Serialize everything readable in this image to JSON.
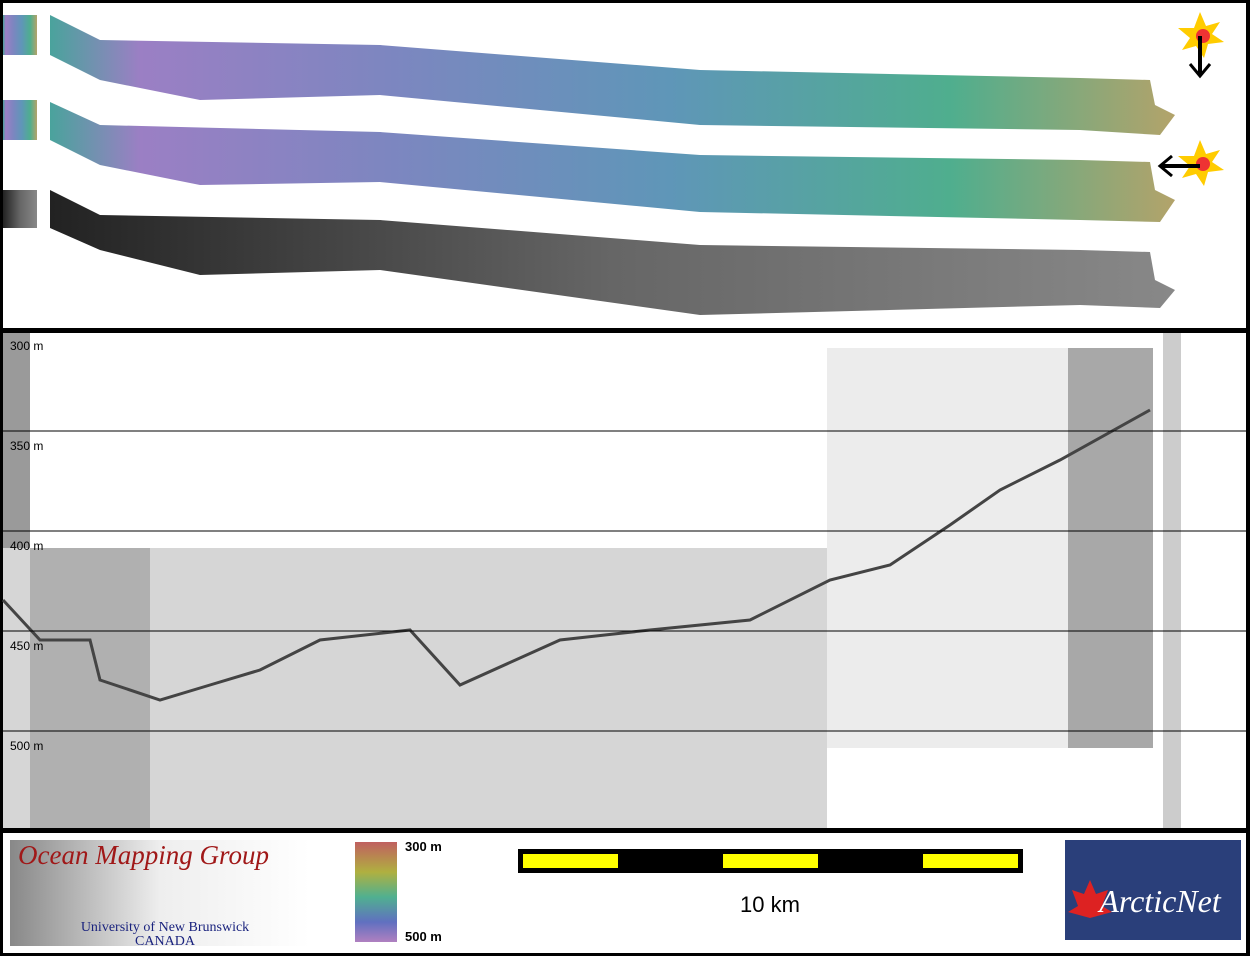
{
  "profile": {
    "ylim": [
      300,
      548
    ],
    "depth_ticks": [
      {
        "value": 300,
        "label": "300 m"
      },
      {
        "value": 350,
        "label": "350 m"
      },
      {
        "value": 400,
        "label": "400 m"
      },
      {
        "value": 450,
        "label": "450 m"
      },
      {
        "value": 500,
        "label": "500 m"
      }
    ]
  },
  "footer": {
    "logo_title": "Ocean Mapping Group",
    "logo_university": "University of New Brunswick",
    "logo_country": "CANADA",
    "colorbar_top": "300 m",
    "colorbar_bottom": "500 m",
    "scale_label": "10 km",
    "partner_logo": "ArcticNet"
  }
}
